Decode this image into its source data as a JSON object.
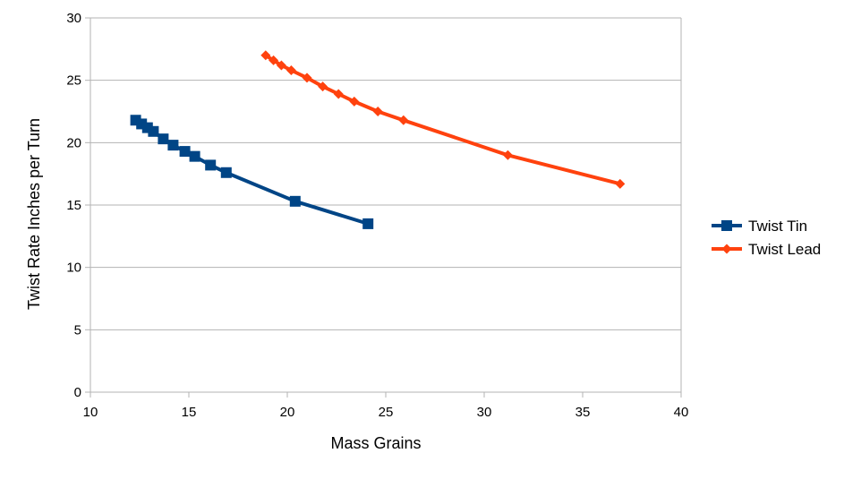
{
  "chart_data": {
    "type": "line",
    "title": "",
    "xlabel": "Mass Grains",
    "ylabel": "Twist Rate Inches per Turn",
    "xlim": [
      10,
      40
    ],
    "ylim": [
      0,
      30
    ],
    "xticks": [
      "10",
      "15",
      "20",
      "25",
      "30",
      "35",
      "40"
    ],
    "yticks": [
      "0",
      "5",
      "10",
      "15",
      "20",
      "25",
      "30"
    ],
    "grid": "horizontal",
    "legend": "right",
    "series": [
      {
        "name": "Twist Tin",
        "color": "#004586",
        "marker": "square",
        "x": [
          12.3,
          12.6,
          12.9,
          13.2,
          13.7,
          14.2,
          14.8,
          15.3,
          16.1,
          16.9,
          20.4,
          24.1
        ],
        "y": [
          21.8,
          21.5,
          21.2,
          20.9,
          20.3,
          19.8,
          19.3,
          18.9,
          18.2,
          17.6,
          15.3,
          13.5
        ]
      },
      {
        "name": "Twist Lead",
        "color": "#ff420e",
        "marker": "diamond",
        "x": [
          18.9,
          19.3,
          19.7,
          20.2,
          21.0,
          21.8,
          22.6,
          23.4,
          24.6,
          25.9,
          31.2,
          36.9
        ],
        "y": [
          27.0,
          26.6,
          26.2,
          25.8,
          25.2,
          24.5,
          23.9,
          23.3,
          22.5,
          21.8,
          19.0,
          16.7
        ]
      }
    ]
  }
}
